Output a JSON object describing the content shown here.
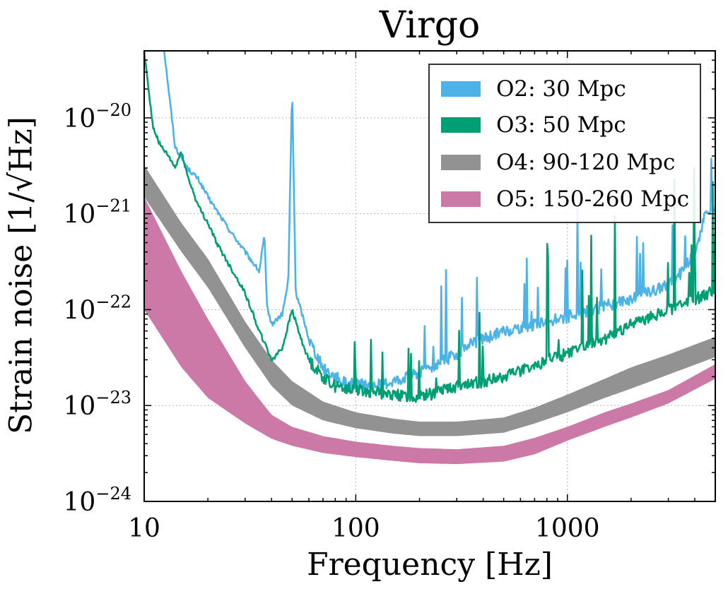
{
  "chart_data": {
    "type": "line",
    "title": "Virgo",
    "xlabel": "Frequency [Hz]",
    "ylabel": "Strain noise [1/√Hz]",
    "x_scale": "log",
    "y_scale": "log",
    "xlim": [
      10,
      5000
    ],
    "ylim": [
      1e-24,
      5e-20
    ],
    "grid": true,
    "legend_position": "top-right",
    "x_ticks": [
      {
        "value": 10,
        "label": "10"
      },
      {
        "value": 100,
        "label": "100"
      },
      {
        "value": 1000,
        "label": "1000"
      }
    ],
    "y_ticks": [
      {
        "value": 1e-24,
        "base": "10",
        "exp": "−24"
      },
      {
        "value": 1e-23,
        "base": "10",
        "exp": "−23"
      },
      {
        "value": 1e-22,
        "base": "10",
        "exp": "−22"
      },
      {
        "value": 1e-21,
        "base": "10",
        "exp": "−21"
      },
      {
        "value": 1e-20,
        "base": "10",
        "exp": "−20"
      }
    ],
    "series": [
      {
        "name": "O2: 30 Mpc",
        "kind": "line",
        "color": "#4db3e6",
        "x": [
          12,
          14,
          16,
          18,
          20,
          25,
          30,
          35,
          37,
          38,
          40,
          45,
          48,
          50,
          52,
          55,
          60,
          70,
          80,
          90,
          100,
          120,
          150,
          200,
          250,
          300,
          350,
          400,
          450,
          500,
          700,
          1000,
          1500,
          2000,
          3000,
          3500,
          4000,
          4500,
          5000
        ],
        "y": [
          1e-19,
          5e-21,
          3e-21,
          2.3e-21,
          1.5e-21,
          7e-22,
          4e-22,
          2.5e-22,
          6e-22,
          1.1e-22,
          7e-23,
          9e-23,
          2e-22,
          2.2e-20,
          1.5e-22,
          1e-22,
          5e-23,
          2.5e-23,
          2e-23,
          1.7e-23,
          1.7e-23,
          1.6e-23,
          1.8e-23,
          2.2e-23,
          2.8e-23,
          3.5e-23,
          4.5e-23,
          5e-23,
          5.5e-23,
          6e-23,
          7e-23,
          8.5e-23,
          1.1e-22,
          1.3e-22,
          1.8e-22,
          2.5e-22,
          4e-22,
          1e-21,
          1.2e-21
        ]
      },
      {
        "name": "O3: 50 Mpc",
        "kind": "line",
        "color": "#009e73",
        "x": [
          10,
          11,
          12,
          13,
          14,
          15,
          16,
          18,
          20,
          22,
          25,
          30,
          35,
          40,
          45,
          50,
          55,
          60,
          70,
          80,
          100,
          120,
          150,
          200,
          250,
          300,
          400,
          500,
          600,
          700,
          800,
          1000,
          1500,
          2000,
          3000,
          4000,
          5000
        ],
        "y": [
          5e-20,
          8e-21,
          5e-21,
          4e-21,
          3e-21,
          4.5e-21,
          2.5e-21,
          1.2e-21,
          8e-22,
          5e-22,
          3e-22,
          1.5e-22,
          6e-23,
          3e-23,
          4e-23,
          1e-22,
          5e-23,
          3e-23,
          2e-23,
          1.6e-23,
          1.5e-23,
          1.4e-23,
          1.3e-23,
          1.25e-23,
          1.4e-23,
          1.6e-23,
          1.8e-23,
          2e-23,
          2.3e-23,
          2.6e-23,
          3e-23,
          3.5e-23,
          5e-23,
          7e-23,
          1e-22,
          1.3e-22,
          1.6e-22
        ]
      },
      {
        "name": "O4: 90-120 Mpc",
        "kind": "band",
        "color": "#929292",
        "x": [
          10,
          15,
          20,
          30,
          40,
          50,
          70,
          100,
          150,
          200,
          300,
          500,
          700,
          1000,
          1500,
          2000,
          3000,
          5000
        ],
        "y_low": [
          1.5e-21,
          4e-22,
          1.7e-22,
          4e-23,
          1.6e-23,
          1e-23,
          7e-24,
          5.8e-24,
          5.1e-24,
          4.8e-24,
          4.8e-24,
          5.2e-24,
          6.5e-24,
          8.5e-24,
          1.2e-23,
          1.5e-23,
          2.1e-23,
          3.2e-23
        ],
        "y_high": [
          3.2e-21,
          8e-22,
          3.4e-22,
          7.5e-23,
          3e-23,
          1.8e-23,
          1.1e-23,
          8.5e-24,
          7.3e-24,
          6.8e-24,
          6.8e-24,
          7.5e-24,
          9.5e-24,
          1.3e-23,
          1.9e-23,
          2.5e-23,
          3.4e-23,
          5.2e-23
        ]
      },
      {
        "name": "O5: 150-260 Mpc",
        "kind": "band",
        "color": "#cc79a7",
        "x": [
          10,
          15,
          20,
          30,
          40,
          50,
          70,
          100,
          150,
          200,
          300,
          500,
          700,
          1000,
          1500,
          2000,
          3000,
          5000
        ],
        "y_low": [
          1e-22,
          2.5e-23,
          1.2e-23,
          6.5e-24,
          4.5e-24,
          3.8e-24,
          3.2e-24,
          2.9e-24,
          2.65e-24,
          2.5e-24,
          2.45e-24,
          2.6e-24,
          3.1e-24,
          4.3e-24,
          6e-24,
          7.5e-24,
          1.05e-23,
          1.9e-23
        ],
        "y_high": [
          1.5e-21,
          2.5e-22,
          8e-23,
          1.8e-23,
          8e-24,
          6e-24,
          4.8e-24,
          4.2e-24,
          3.8e-24,
          3.6e-24,
          3.5e-24,
          3.8e-24,
          4.6e-24,
          6e-24,
          8.5e-24,
          1.05e-23,
          1.45e-23,
          2.7e-23
        ]
      }
    ]
  }
}
